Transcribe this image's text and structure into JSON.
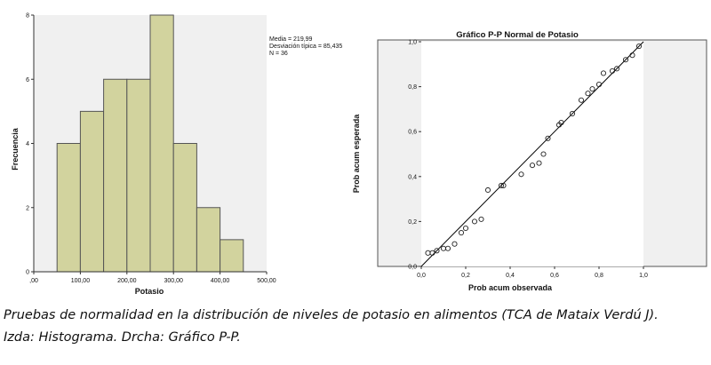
{
  "chart_data": [
    {
      "type": "bar",
      "subtype": "histogram",
      "title": "",
      "xlabel": "Potasio",
      "ylabel": "Frecuencia",
      "xlim": [
        0,
        500
      ],
      "ylim": [
        0,
        8
      ],
      "x_ticks": [
        0,
        100,
        200,
        300,
        400,
        500
      ],
      "x_tick_labels": [
        ",00",
        "100,00",
        "200,00",
        "300,00",
        "400,00",
        "500,00"
      ],
      "y_ticks": [
        0,
        2,
        4,
        6,
        8
      ],
      "y_tick_labels": [
        "0",
        "2",
        "4",
        "6",
        "8"
      ],
      "bins": [
        {
          "start": 50,
          "end": 100,
          "count": 4
        },
        {
          "start": 100,
          "end": 150,
          "count": 5
        },
        {
          "start": 150,
          "end": 200,
          "count": 6
        },
        {
          "start": 200,
          "end": 250,
          "count": 6
        },
        {
          "start": 250,
          "end": 300,
          "count": 8
        },
        {
          "start": 300,
          "end": 350,
          "count": 4
        },
        {
          "start": 350,
          "end": 400,
          "count": 2
        },
        {
          "start": 400,
          "end": 450,
          "count": 1
        }
      ],
      "stats": [
        "Media = 219,99",
        "Desviación típica = 85,435",
        "N = 36"
      ],
      "bar_color": "#d2d39e",
      "bar_stroke": "#555555",
      "plot_background": "#f0f0f0"
    },
    {
      "type": "scatter",
      "subtype": "p-p plot",
      "title": "Gráfico P-P Normal de Potasio",
      "xlabel": "Prob acum observada",
      "ylabel": "Prob acum esperada",
      "xlim": [
        0,
        1
      ],
      "ylim": [
        0,
        1
      ],
      "x_ticks": [
        0,
        0.2,
        0.4,
        0.6,
        0.8,
        1.0
      ],
      "x_tick_labels": [
        "0,0",
        "0,2",
        "0,4",
        "0,6",
        "0,8",
        "1,0"
      ],
      "y_ticks": [
        0,
        0.2,
        0.4,
        0.6,
        0.8,
        1.0
      ],
      "y_tick_labels": [
        "0,0",
        "0,2",
        "0,4",
        "0,6",
        "0,8",
        "1,0"
      ],
      "points": [
        [
          0.03,
          0.06
        ],
        [
          0.05,
          0.06
        ],
        [
          0.07,
          0.07
        ],
        [
          0.1,
          0.08
        ],
        [
          0.12,
          0.08
        ],
        [
          0.15,
          0.1
        ],
        [
          0.18,
          0.15
        ],
        [
          0.2,
          0.17
        ],
        [
          0.24,
          0.2
        ],
        [
          0.27,
          0.21
        ],
        [
          0.3,
          0.34
        ],
        [
          0.36,
          0.36
        ],
        [
          0.37,
          0.36
        ],
        [
          0.45,
          0.41
        ],
        [
          0.5,
          0.45
        ],
        [
          0.53,
          0.46
        ],
        [
          0.55,
          0.5
        ],
        [
          0.57,
          0.57
        ],
        [
          0.62,
          0.63
        ],
        [
          0.63,
          0.64
        ],
        [
          0.68,
          0.68
        ],
        [
          0.72,
          0.74
        ],
        [
          0.75,
          0.77
        ],
        [
          0.77,
          0.79
        ],
        [
          0.8,
          0.81
        ],
        [
          0.82,
          0.86
        ],
        [
          0.86,
          0.87
        ],
        [
          0.88,
          0.88
        ],
        [
          0.92,
          0.92
        ],
        [
          0.95,
          0.94
        ],
        [
          0.98,
          0.98
        ]
      ],
      "reference_line": [
        [
          0,
          0
        ],
        [
          1,
          1
        ]
      ],
      "plot_background": "#ffffff",
      "outer_background": "#f0f0f0"
    }
  ],
  "caption": {
    "line1": "Pruebas de normalidad en la distribución de niveles de potasio en alimentos (TCA de Mataix Verdú J).",
    "line2": "Izda: Histograma. Drcha: Gráfico P-P."
  }
}
